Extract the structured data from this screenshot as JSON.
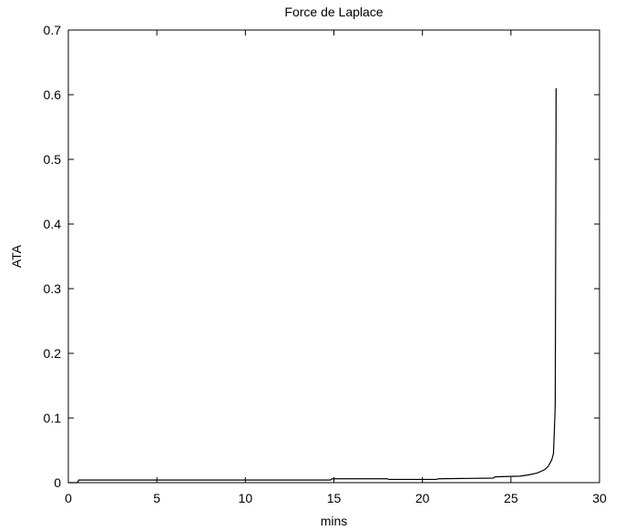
{
  "chart_data": {
    "type": "line",
    "title": "Force de Laplace",
    "xlabel": "mins",
    "ylabel": "ATA",
    "xlim": [
      0,
      30
    ],
    "ylim": [
      0,
      0.7
    ],
    "x_ticks": [
      0,
      5,
      10,
      15,
      20,
      25,
      30
    ],
    "y_ticks": [
      0,
      0.1,
      0.2,
      0.3,
      0.4,
      0.5,
      0.6,
      0.7
    ],
    "x_tick_labels": [
      "0",
      "5",
      "10",
      "15",
      "20",
      "25",
      "30"
    ],
    "y_tick_labels": [
      "0",
      "0.1",
      "0.2",
      "0.3",
      "0.4",
      "0.5",
      "0.6",
      "0.7"
    ],
    "grid": false,
    "legend": "none",
    "series": [
      {
        "color": "#000000",
        "x": [
          0,
          0.5,
          0.6,
          5,
          10,
          14.8,
          14.9,
          18,
          18.1,
          20.8,
          20.9,
          24,
          24.1,
          25.5,
          26,
          26.5,
          26.9,
          27.1,
          27.2,
          27.3,
          27.35,
          27.4,
          27.42,
          27.45,
          27.5,
          27.55
        ],
        "y": [
          0,
          0,
          0.004,
          0.004,
          0.004,
          0.004,
          0.006,
          0.006,
          0.005,
          0.005,
          0.006,
          0.007,
          0.009,
          0.01,
          0.012,
          0.015,
          0.02,
          0.025,
          0.03,
          0.035,
          0.04,
          0.045,
          0.06,
          0.08,
          0.12,
          0.61
        ]
      }
    ]
  }
}
